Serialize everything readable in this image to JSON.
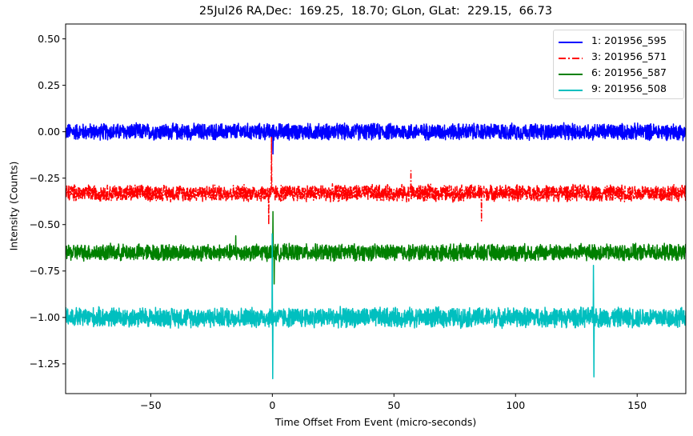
{
  "chart_data": {
    "type": "line",
    "title": "25Jul26 RA,Dec:  169.25,  18.70; GLon, GLat:  229.15,  66.73",
    "xlabel": "Time Offset From Event (micro-seconds)",
    "ylabel": "Intensity (Counts)",
    "xlim": [
      -85,
      170
    ],
    "ylim": [
      -1.41,
      0.58
    ],
    "xticks": [
      -50,
      0,
      50,
      100,
      150
    ],
    "xtick_labels": [
      "−50",
      "0",
      "50",
      "100",
      "150"
    ],
    "yticks": [
      0.5,
      0.25,
      0.0,
      -0.25,
      -0.5,
      -0.75,
      -1.0,
      -1.25
    ],
    "ytick_labels": [
      "0.50",
      "0.25",
      "0.00",
      "−0.25",
      "−0.50",
      "−0.75",
      "−1.00",
      "−1.25"
    ],
    "grid": false,
    "legend_position": "upper right",
    "series": [
      {
        "name": "1: 201956_595",
        "color": "#0000ff",
        "linestyle": "solid",
        "offset": 0.0,
        "noise_amplitude": 0.05,
        "spikes": [
          {
            "x": 0.3,
            "y": -0.12
          }
        ]
      },
      {
        "name": "3: 201956_571",
        "color": "#ff0000",
        "linestyle": "dashdot",
        "offset": -0.33,
        "noise_amplitude": 0.05,
        "spikes": [
          {
            "x": -0.3,
            "y": -0.03
          },
          {
            "x": -1.5,
            "y": -0.5
          },
          {
            "x": 57,
            "y": -0.21
          },
          {
            "x": 86,
            "y": -0.48
          }
        ]
      },
      {
        "name": "6: 201956_587",
        "color": "#008000",
        "linestyle": "solid",
        "offset": -0.65,
        "noise_amplitude": 0.05,
        "spikes": [
          {
            "x": 0.3,
            "y": -0.43
          },
          {
            "x": 0.8,
            "y": -0.82
          },
          {
            "x": -15,
            "y": -0.56
          }
        ]
      },
      {
        "name": "9: 201956_508",
        "color": "#00bfbf",
        "linestyle": "solid",
        "offset": -1.0,
        "noise_amplitude": 0.06,
        "spikes": [
          {
            "x": 0.0,
            "y": -0.55
          },
          {
            "x": 0.2,
            "y": -1.33
          },
          {
            "x": 132,
            "y": -0.72
          },
          {
            "x": 132.2,
            "y": -1.32
          }
        ]
      }
    ]
  }
}
